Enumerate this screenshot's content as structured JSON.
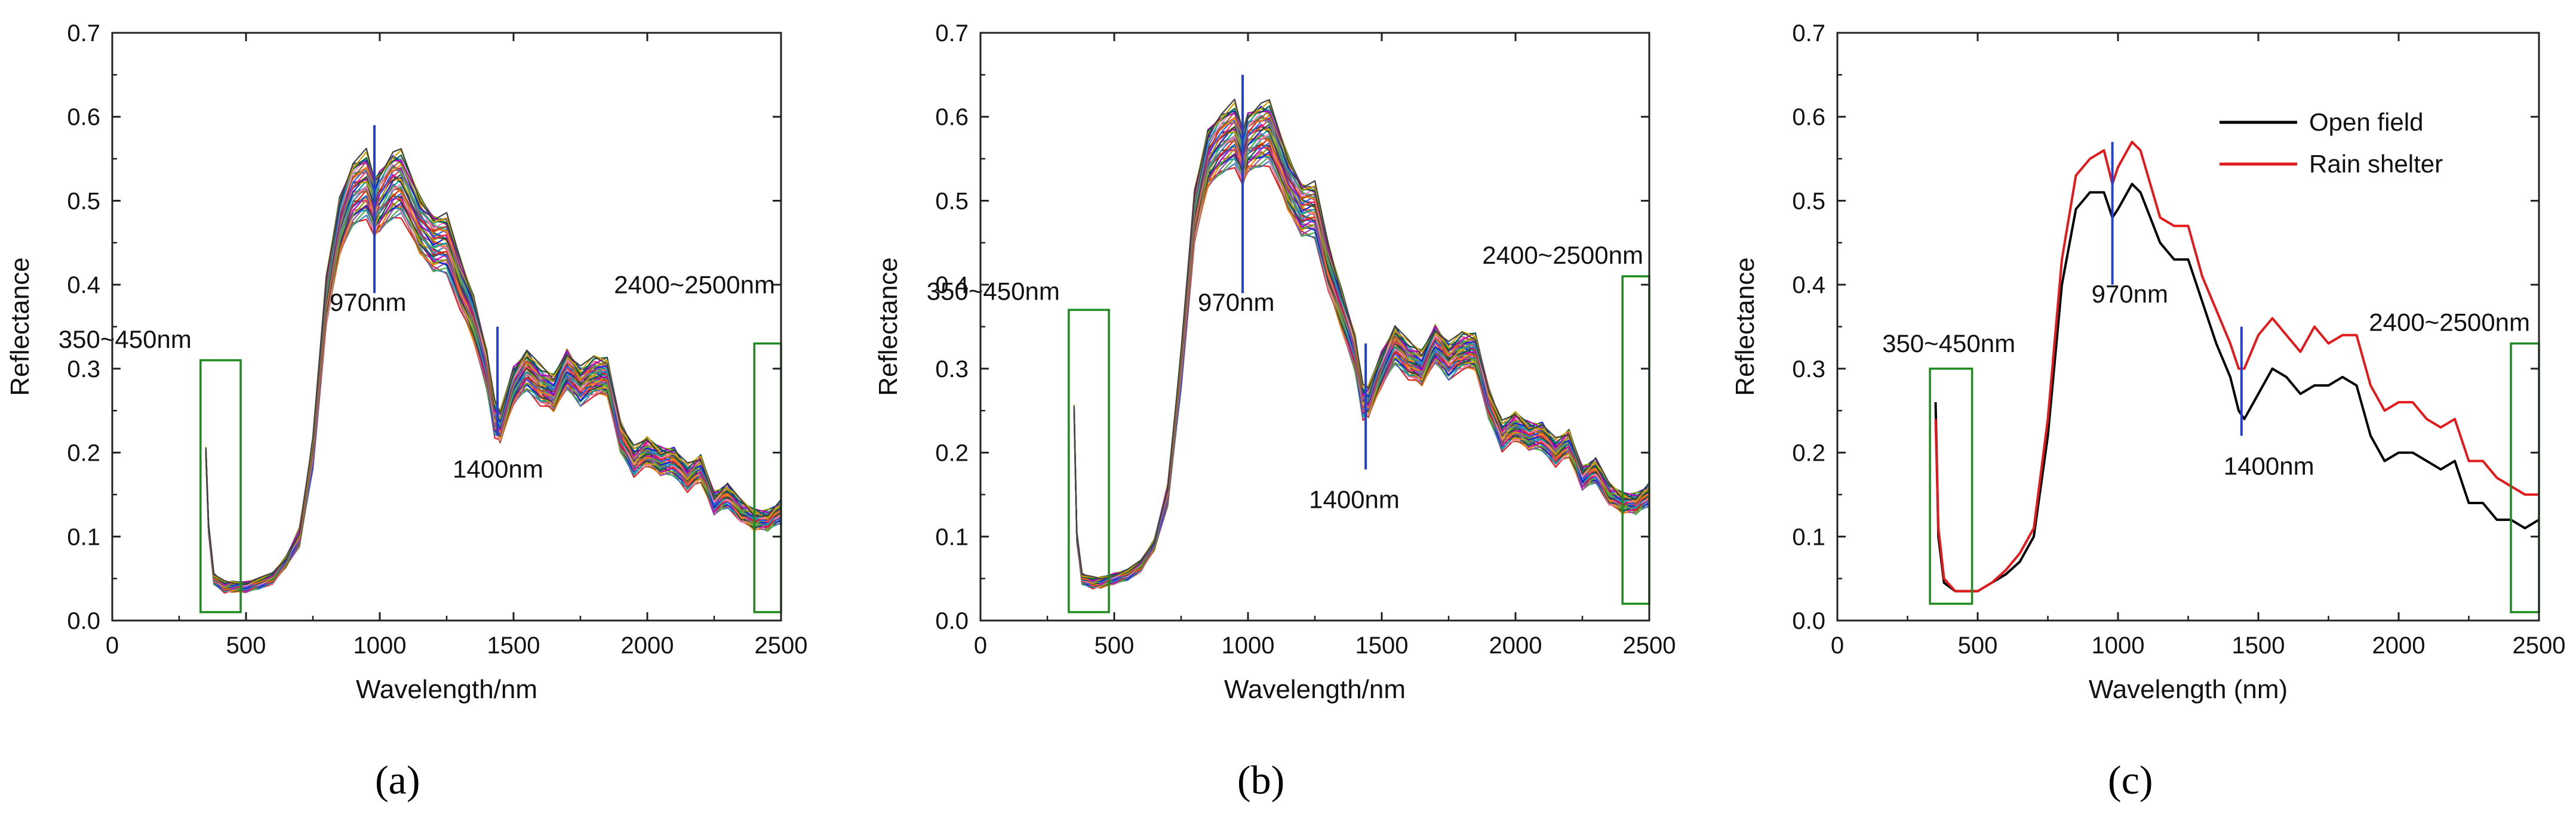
{
  "chart_data": [
    {
      "panel_label": "a",
      "panel_label_display": "(a)",
      "type": "line",
      "xlabel": "Wavelength/nm",
      "ylabel": "Reflectance",
      "xlim": [
        0,
        2500
      ],
      "ylim": [
        0,
        0.7
      ],
      "xticks": [
        0,
        500,
        1000,
        1500,
        2000,
        2500
      ],
      "yticks": [
        0.0,
        0.1,
        0.2,
        0.3,
        0.4,
        0.5,
        0.6,
        0.7
      ],
      "ytick_labels": [
        "0.0",
        "0.1",
        "0.2",
        "0.3",
        "0.4",
        "0.5",
        "0.6",
        "0.7"
      ],
      "series_note": "many sample spectra",
      "mean_spectrum": {
        "x": [
          350,
          360,
          380,
          420,
          450,
          500,
          550,
          600,
          650,
          700,
          750,
          800,
          850,
          900,
          950,
          980,
          1000,
          1050,
          1080,
          1150,
          1200,
          1250,
          1300,
          1350,
          1400,
          1430,
          1450,
          1500,
          1550,
          1600,
          1650,
          1700,
          1750,
          1800,
          1850,
          1900,
          1950,
          2000,
          2050,
          2100,
          2150,
          2200,
          2250,
          2300,
          2350,
          2400,
          2450,
          2500
        ],
        "y": [
          0.2,
          0.11,
          0.05,
          0.04,
          0.04,
          0.04,
          0.045,
          0.05,
          0.07,
          0.1,
          0.2,
          0.38,
          0.47,
          0.51,
          0.52,
          0.49,
          0.5,
          0.52,
          0.52,
          0.47,
          0.45,
          0.45,
          0.4,
          0.36,
          0.3,
          0.24,
          0.23,
          0.28,
          0.3,
          0.28,
          0.27,
          0.3,
          0.28,
          0.29,
          0.29,
          0.22,
          0.19,
          0.2,
          0.19,
          0.19,
          0.17,
          0.18,
          0.14,
          0.15,
          0.13,
          0.12,
          0.12,
          0.13
        ]
      },
      "spread_max": 0.07,
      "spread_min": 0.01,
      "markers": [
        {
          "label": "970nm",
          "x": 980,
          "y0": 0.39,
          "y1": 0.59,
          "color": "#1f3fd6"
        },
        {
          "label": "1400nm",
          "x": 1440,
          "y0": 0.22,
          "y1": 0.35,
          "color": "#1f3fd6"
        }
      ],
      "boxes": [
        {
          "label": "350~450nm",
          "x0": 330,
          "x1": 480,
          "y0": 0.01,
          "y1": 0.31
        },
        {
          "label": "2400~2500nm",
          "x0": 2400,
          "x1": 2500,
          "y0": 0.01,
          "y1": 0.33
        }
      ]
    },
    {
      "panel_label": "b",
      "panel_label_display": "(b)",
      "type": "line",
      "xlabel": "Wavelength/nm",
      "ylabel": "Reflectance",
      "xlim": [
        0,
        2500
      ],
      "ylim": [
        0,
        0.7
      ],
      "xticks": [
        0,
        500,
        1000,
        1500,
        2000,
        2500
      ],
      "yticks": [
        0.0,
        0.1,
        0.2,
        0.3,
        0.4,
        0.5,
        0.6,
        0.7
      ],
      "ytick_labels": [
        "0.0",
        "0.1",
        "0.2",
        "0.3",
        "0.4",
        "0.5",
        "0.6",
        "0.7"
      ],
      "series_note": "many sample spectra",
      "mean_spectrum": {
        "x": [
          350,
          360,
          380,
          420,
          450,
          500,
          550,
          600,
          650,
          700,
          750,
          800,
          850,
          900,
          950,
          980,
          1000,
          1050,
          1080,
          1150,
          1200,
          1250,
          1300,
          1350,
          1400,
          1430,
          1450,
          1500,
          1550,
          1600,
          1650,
          1700,
          1750,
          1800,
          1850,
          1900,
          1950,
          2000,
          2050,
          2100,
          2150,
          2200,
          2250,
          2300,
          2350,
          2400,
          2450,
          2500
        ],
        "y": [
          0.25,
          0.1,
          0.05,
          0.045,
          0.045,
          0.05,
          0.055,
          0.065,
          0.09,
          0.15,
          0.3,
          0.48,
          0.55,
          0.57,
          0.58,
          0.55,
          0.57,
          0.58,
          0.58,
          0.52,
          0.49,
          0.49,
          0.42,
          0.37,
          0.32,
          0.26,
          0.26,
          0.3,
          0.33,
          0.31,
          0.3,
          0.33,
          0.31,
          0.32,
          0.32,
          0.26,
          0.22,
          0.23,
          0.22,
          0.22,
          0.2,
          0.21,
          0.17,
          0.18,
          0.15,
          0.14,
          0.14,
          0.15
        ]
      },
      "spread_max": 0.06,
      "spread_min": 0.01,
      "markers": [
        {
          "label": "970nm",
          "x": 980,
          "y0": 0.39,
          "y1": 0.65,
          "color": "#1f3fd6"
        },
        {
          "label": "1400nm",
          "x": 1440,
          "y0": 0.18,
          "y1": 0.33,
          "color": "#1f3fd6"
        }
      ],
      "boxes": [
        {
          "label": "350~450nm",
          "x0": 330,
          "x1": 480,
          "y0": 0.01,
          "y1": 0.37
        },
        {
          "label": "2400~2500nm",
          "x0": 2400,
          "x1": 2500,
          "y0": 0.02,
          "y1": 0.41
        }
      ]
    },
    {
      "panel_label": "c",
      "panel_label_display": "(c)",
      "type": "line",
      "xlabel": "Wavelength (nm)",
      "ylabel": "Reflectance",
      "xlim": [
        0,
        2500
      ],
      "ylim": [
        0,
        0.7
      ],
      "xticks": [
        0,
        500,
        1000,
        1500,
        2000,
        2500
      ],
      "yticks": [
        0.0,
        0.1,
        0.2,
        0.3,
        0.4,
        0.5,
        0.6,
        0.7
      ],
      "ytick_labels": [
        "0.0",
        "0.1",
        "0.2",
        "0.3",
        "0.4",
        "0.5",
        "0.6",
        "0.7"
      ],
      "legend": "top-right",
      "series": [
        {
          "name": "Open field",
          "color": "#000000",
          "x": [
            350,
            360,
            380,
            420,
            450,
            500,
            550,
            600,
            650,
            700,
            750,
            800,
            850,
            900,
            950,
            980,
            1000,
            1050,
            1080,
            1150,
            1200,
            1250,
            1300,
            1350,
            1400,
            1430,
            1450,
            1500,
            1550,
            1600,
            1650,
            1700,
            1750,
            1800,
            1850,
            1900,
            1950,
            2000,
            2050,
            2100,
            2150,
            2200,
            2250,
            2300,
            2350,
            2400,
            2450,
            2500
          ],
          "y": [
            0.26,
            0.1,
            0.045,
            0.035,
            0.035,
            0.035,
            0.045,
            0.055,
            0.07,
            0.1,
            0.22,
            0.4,
            0.49,
            0.51,
            0.51,
            0.48,
            0.49,
            0.52,
            0.51,
            0.45,
            0.43,
            0.43,
            0.38,
            0.33,
            0.29,
            0.25,
            0.24,
            0.27,
            0.3,
            0.29,
            0.27,
            0.28,
            0.28,
            0.29,
            0.28,
            0.22,
            0.19,
            0.2,
            0.2,
            0.19,
            0.18,
            0.19,
            0.14,
            0.14,
            0.12,
            0.12,
            0.11,
            0.12
          ]
        },
        {
          "name": "Rain shelter",
          "color": "#e31a1c",
          "x": [
            350,
            360,
            380,
            420,
            450,
            500,
            550,
            600,
            650,
            700,
            750,
            800,
            850,
            900,
            950,
            980,
            1000,
            1050,
            1080,
            1150,
            1200,
            1250,
            1300,
            1350,
            1400,
            1430,
            1450,
            1500,
            1550,
            1600,
            1650,
            1700,
            1750,
            1800,
            1850,
            1900,
            1950,
            2000,
            2050,
            2100,
            2150,
            2200,
            2250,
            2300,
            2350,
            2400,
            2450,
            2500
          ],
          "y": [
            0.24,
            0.11,
            0.05,
            0.035,
            0.035,
            0.035,
            0.045,
            0.06,
            0.08,
            0.11,
            0.24,
            0.43,
            0.53,
            0.55,
            0.56,
            0.52,
            0.54,
            0.57,
            0.56,
            0.48,
            0.47,
            0.47,
            0.41,
            0.37,
            0.33,
            0.3,
            0.3,
            0.34,
            0.36,
            0.34,
            0.32,
            0.35,
            0.33,
            0.34,
            0.34,
            0.28,
            0.25,
            0.26,
            0.26,
            0.24,
            0.23,
            0.24,
            0.19,
            0.19,
            0.17,
            0.16,
            0.15,
            0.15
          ]
        }
      ],
      "markers": [
        {
          "label": "970nm",
          "x": 980,
          "y0": 0.4,
          "y1": 0.57,
          "color": "#1f3fd6"
        },
        {
          "label": "1400nm",
          "x": 1440,
          "y0": 0.22,
          "y1": 0.35,
          "color": "#1f3fd6"
        }
      ],
      "boxes": [
        {
          "label": "350~450nm",
          "x0": 330,
          "x1": 480,
          "y0": 0.02,
          "y1": 0.3
        },
        {
          "label": "2400~2500nm",
          "x0": 2400,
          "x1": 2500,
          "y0": 0.01,
          "y1": 0.33
        }
      ]
    }
  ]
}
